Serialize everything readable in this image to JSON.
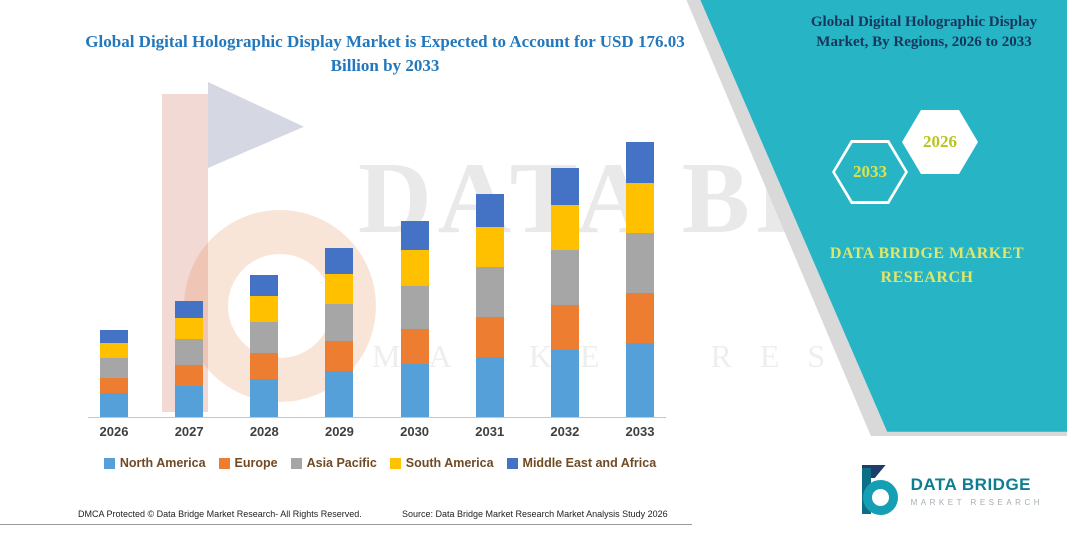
{
  "header": {
    "title": "Global Digital Holographic Display Market is Expected to Account for USD 176.03 Billion by 2033"
  },
  "side_panel": {
    "heading": "Global Digital Holographic Display Market, By Regions, 2026 to 2033",
    "hex_back_year": "2033",
    "hex_front_year": "2026",
    "brand_text": "DATA BRIDGE MARKET RESEARCH",
    "bg_color": "#27B4C5",
    "heading_color": "#17365D",
    "year_text_color": "#DCE24A"
  },
  "watermark": {
    "line1": "DATA BRIDGE",
    "line2": "MARKET RESEARCH"
  },
  "chart_data": {
    "type": "bar",
    "stacked": true,
    "categories": [
      "2026",
      "2027",
      "2028",
      "2029",
      "2030",
      "2031",
      "2032",
      "2033"
    ],
    "series": [
      {
        "name": "North America",
        "color": "#55A0D8",
        "values": [
          15.1,
          20.1,
          24.6,
          29.2,
          33.9,
          38.6,
          43.1,
          47.5
        ]
      },
      {
        "name": "Europe",
        "color": "#ED7D31",
        "values": [
          10.1,
          13.4,
          16.4,
          19.4,
          22.6,
          25.7,
          28.7,
          31.7
        ]
      },
      {
        "name": "Asia Pacific",
        "color": "#A6A6A6",
        "values": [
          12.3,
          16.4,
          20.0,
          23.8,
          27.6,
          31.5,
          35.1,
          38.7
        ]
      },
      {
        "name": "South America",
        "color": "#FFC000",
        "values": [
          10.1,
          13.4,
          16.4,
          19.4,
          22.6,
          25.7,
          28.7,
          31.8
        ]
      },
      {
        "name": "Middle East and Africa",
        "color": "#4472C4",
        "values": [
          8.4,
          11.2,
          13.6,
          16.2,
          18.8,
          21.4,
          23.9,
          26.3
        ]
      }
    ],
    "ylim": [
      0,
      185
    ],
    "grid": false,
    "legend_position": "bottom",
    "note": "values estimated from bar heights, USD Billion scale implied by 176.03 total in 2033"
  },
  "footer": {
    "dmca": "DMCA Protected © Data Bridge Market Research-  All Rights Reserved.",
    "source": "Source: Data Bridge Market Research  Market Analysis Study 2026"
  },
  "logo": {
    "name": "DATA BRIDGE",
    "tagline": "MARKET RESEARCH"
  }
}
